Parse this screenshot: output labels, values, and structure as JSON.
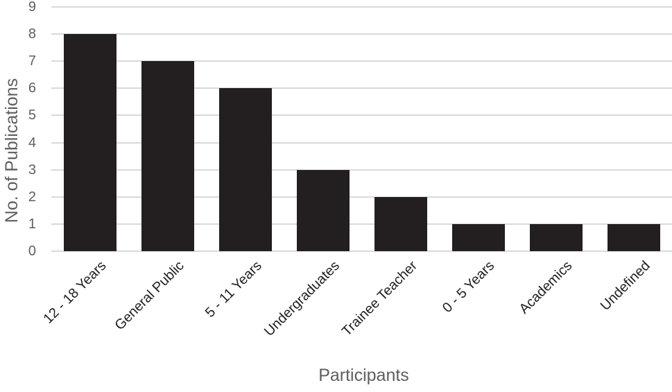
{
  "chart_data": {
    "type": "bar",
    "title": "",
    "categories": [
      "12 - 18 Years",
      "General Public",
      "5 - 11 Years",
      "Undergraduates",
      "Trainee Teacher",
      "0 - 5 Years",
      "Academics",
      "Undefined"
    ],
    "values": [
      8,
      7,
      6,
      3,
      2,
      1,
      1,
      1
    ],
    "xlabel": "Participants",
    "ylabel": "No. of Publications",
    "ylim": [
      0,
      9
    ],
    "ytick_step": 1,
    "yticks": [
      "0",
      "1",
      "2",
      "3",
      "4",
      "5",
      "6",
      "7",
      "8",
      "9"
    ],
    "grid": "horizontal",
    "legend": "none",
    "bar_color": "#231f20",
    "gridline_color": "#d9d9d9",
    "axis_text_color": "#5f5f5f",
    "category_text_color": "#1f1f1f"
  }
}
